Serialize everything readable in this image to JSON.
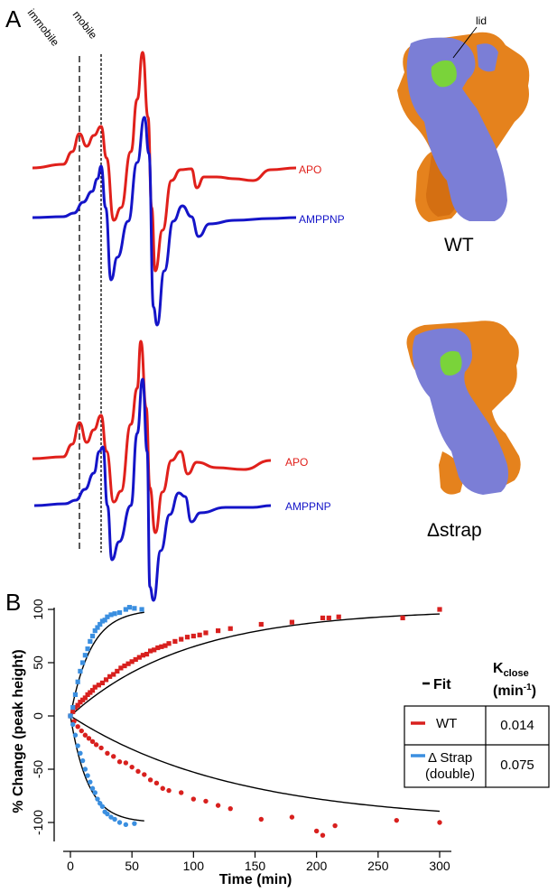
{
  "panel_a": {
    "letter": "A",
    "marker_labels": {
      "immobile": "immobile",
      "mobile": "mobile"
    },
    "top_set": {
      "apo_label": "APO",
      "amppnp_label": "AMPPNP"
    },
    "bottom_set": {
      "apo_label": "APO",
      "amppnp_label": "AMPPNP"
    },
    "structures": {
      "wt_label": "WT",
      "dstrap_label": "Δstrap",
      "lid_label": "lid"
    }
  },
  "panel_b": {
    "letter": "B"
  },
  "colors": {
    "apo": "#e0201b",
    "amppnp": "#1414c8",
    "wt": "#d8201e",
    "dstrap": "#3b8fe0",
    "fit": "#000000",
    "protein_blue": "#7b7ed6",
    "protein_orange": "#e5821d",
    "lid_green": "#7ad33a"
  },
  "chart_data": {
    "type": "scatter",
    "xlabel": "Time (min)",
    "ylabel": "% Change  (peak height)",
    "xlim": [
      -5,
      305
    ],
    "ylim": [
      -115,
      105
    ],
    "xticks": [
      0,
      50,
      100,
      150,
      200,
      250,
      300
    ],
    "yticks": [
      -100,
      -50,
      0,
      50,
      100
    ],
    "grid": false,
    "series": [
      {
        "name": "WT",
        "marker": "square",
        "points": [
          [
            0,
            0
          ],
          [
            2,
            4
          ],
          [
            4,
            8
          ],
          [
            6,
            10
          ],
          [
            8,
            13
          ],
          [
            10,
            15
          ],
          [
            12,
            17
          ],
          [
            14,
            20
          ],
          [
            16,
            22
          ],
          [
            18,
            24
          ],
          [
            20,
            27
          ],
          [
            23,
            29
          ],
          [
            26,
            31
          ],
          [
            29,
            34
          ],
          [
            32,
            37
          ],
          [
            35,
            39
          ],
          [
            38,
            42
          ],
          [
            41,
            45
          ],
          [
            44,
            47
          ],
          [
            47,
            49
          ],
          [
            50,
            51
          ],
          [
            53,
            53
          ],
          [
            56,
            55
          ],
          [
            59,
            57
          ],
          [
            62,
            58
          ],
          [
            65,
            61
          ],
          [
            68,
            62
          ],
          [
            71,
            64
          ],
          [
            74,
            65
          ],
          [
            77,
            66
          ],
          [
            80,
            68
          ],
          [
            85,
            70
          ],
          [
            90,
            72
          ],
          [
            95,
            74
          ],
          [
            100,
            75
          ],
          [
            105,
            76
          ],
          [
            110,
            78
          ],
          [
            120,
            80
          ],
          [
            130,
            82
          ],
          [
            155,
            86
          ],
          [
            180,
            88
          ],
          [
            205,
            92
          ],
          [
            210,
            92
          ],
          [
            218,
            93
          ],
          [
            270,
            92
          ],
          [
            300,
            100
          ]
        ]
      },
      {
        "name": "WT",
        "marker": "circle",
        "points": [
          [
            0,
            0
          ],
          [
            3,
            -5
          ],
          [
            6,
            -10
          ],
          [
            9,
            -14
          ],
          [
            12,
            -18
          ],
          [
            15,
            -21
          ],
          [
            18,
            -24
          ],
          [
            21,
            -27
          ],
          [
            25,
            -30
          ],
          [
            30,
            -35
          ],
          [
            35,
            -38
          ],
          [
            40,
            -43
          ],
          [
            45,
            -44
          ],
          [
            50,
            -48
          ],
          [
            55,
            -52
          ],
          [
            60,
            -55
          ],
          [
            65,
            -60
          ],
          [
            70,
            -63
          ],
          [
            75,
            -68
          ],
          [
            80,
            -70
          ],
          [
            90,
            -72
          ],
          [
            100,
            -78
          ],
          [
            110,
            -80
          ],
          [
            120,
            -84
          ],
          [
            130,
            -87
          ],
          [
            155,
            -97
          ],
          [
            180,
            -95
          ],
          [
            200,
            -108
          ],
          [
            205,
            -112
          ],
          [
            215,
            -103
          ],
          [
            265,
            -98
          ],
          [
            300,
            -100
          ]
        ]
      },
      {
        "name": "Δ Strap (double)",
        "marker": "square",
        "points": [
          [
            0,
            0
          ],
          [
            2,
            8
          ],
          [
            4,
            20
          ],
          [
            6,
            32
          ],
          [
            8,
            42
          ],
          [
            10,
            50
          ],
          [
            12,
            57
          ],
          [
            14,
            63
          ],
          [
            16,
            70
          ],
          [
            18,
            75
          ],
          [
            20,
            80
          ],
          [
            22,
            83
          ],
          [
            24,
            86
          ],
          [
            26,
            89
          ],
          [
            28,
            90
          ],
          [
            30,
            93
          ],
          [
            33,
            95
          ],
          [
            36,
            96
          ],
          [
            40,
            97
          ],
          [
            45,
            100
          ],
          [
            48,
            102
          ],
          [
            52,
            101
          ],
          [
            58,
            100
          ]
        ]
      },
      {
        "name": "Δ Strap (double)",
        "marker": "circle",
        "points": [
          [
            0,
            0
          ],
          [
            2,
            -8
          ],
          [
            4,
            -18
          ],
          [
            6,
            -28
          ],
          [
            8,
            -35
          ],
          [
            10,
            -42
          ],
          [
            12,
            -50
          ],
          [
            14,
            -56
          ],
          [
            16,
            -62
          ],
          [
            18,
            -68
          ],
          [
            20,
            -72
          ],
          [
            22,
            -78
          ],
          [
            24,
            -82
          ],
          [
            26,
            -85
          ],
          [
            28,
            -90
          ],
          [
            30,
            -92
          ],
          [
            33,
            -95
          ],
          [
            36,
            -97
          ],
          [
            40,
            -100
          ],
          [
            45,
            -102
          ],
          [
            52,
            -101
          ]
        ]
      }
    ],
    "legend": {
      "placement": "right",
      "fit_label": "Fit",
      "k_header": "K",
      "k_sub": "close",
      "k_unit": "(min",
      "k_unit_sup": "-1",
      "k_unit_end": ")",
      "rows": [
        {
          "label": "WT",
          "k": "0.014"
        },
        {
          "label": "Δ Strap",
          "label2": "(double)",
          "k": "0.075"
        }
      ]
    }
  }
}
